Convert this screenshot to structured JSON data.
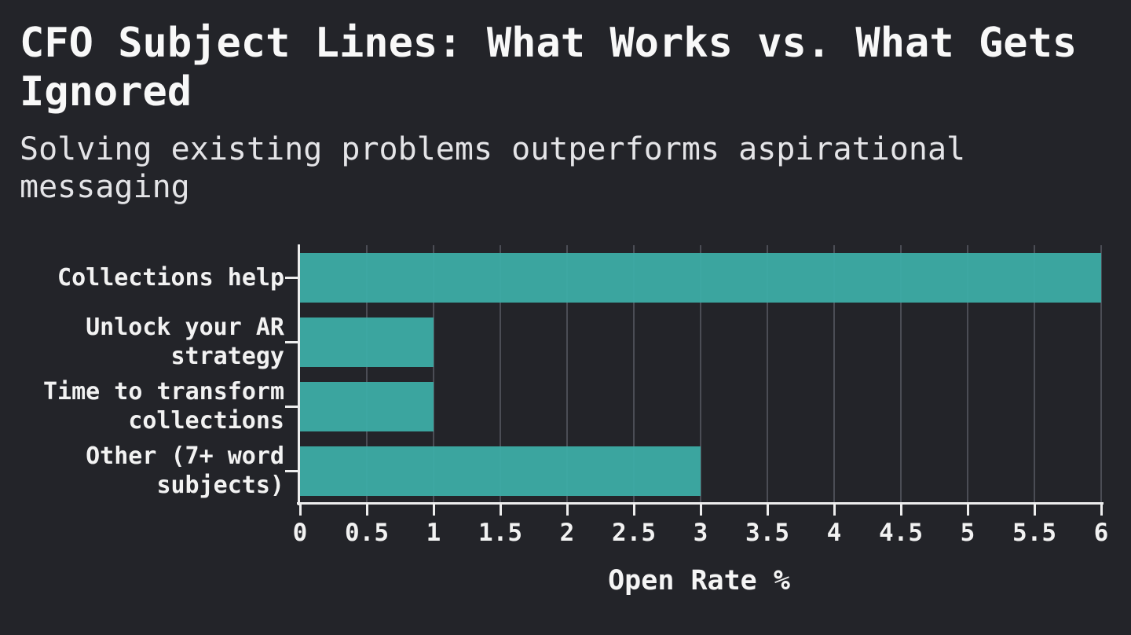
{
  "chart_data": {
    "type": "bar",
    "orientation": "horizontal",
    "title": "CFO Subject Lines: What Works vs. What Gets Ignored",
    "subtitle": "Solving existing problems outperforms aspirational messaging",
    "categories": [
      "Collections help",
      "Unlock your AR strategy",
      "Time to transform collections",
      "Other (7+ word subjects)"
    ],
    "values": [
      6,
      1,
      1,
      3
    ],
    "xlabel": "Open Rate %",
    "ylabel": "",
    "xlim": [
      0,
      6
    ],
    "xticks": [
      0,
      0.5,
      1,
      1.5,
      2,
      2.5,
      3,
      3.5,
      4,
      4.5,
      5,
      5.5,
      6
    ],
    "grid": "vertical",
    "legend": "none",
    "colors": {
      "background": "#232429",
      "bar": "#3CACA6",
      "axis": "#EDEDED",
      "grid": "#4B4D55",
      "title_text": "#F8F8F8",
      "subtitle_text": "#E4E4E7",
      "tick_text": "#F2F2F2"
    }
  },
  "labels": {
    "category_lines": [
      [
        "Collections help"
      ],
      [
        "Unlock your AR",
        "strategy"
      ],
      [
        "Time to transform",
        "collections"
      ],
      [
        "Other (7+ word",
        "subjects)"
      ]
    ],
    "xtick_labels": [
      "0",
      "0.5",
      "1",
      "1.5",
      "2",
      "2.5",
      "3",
      "3.5",
      "4",
      "4.5",
      "5",
      "5.5",
      "6"
    ]
  }
}
